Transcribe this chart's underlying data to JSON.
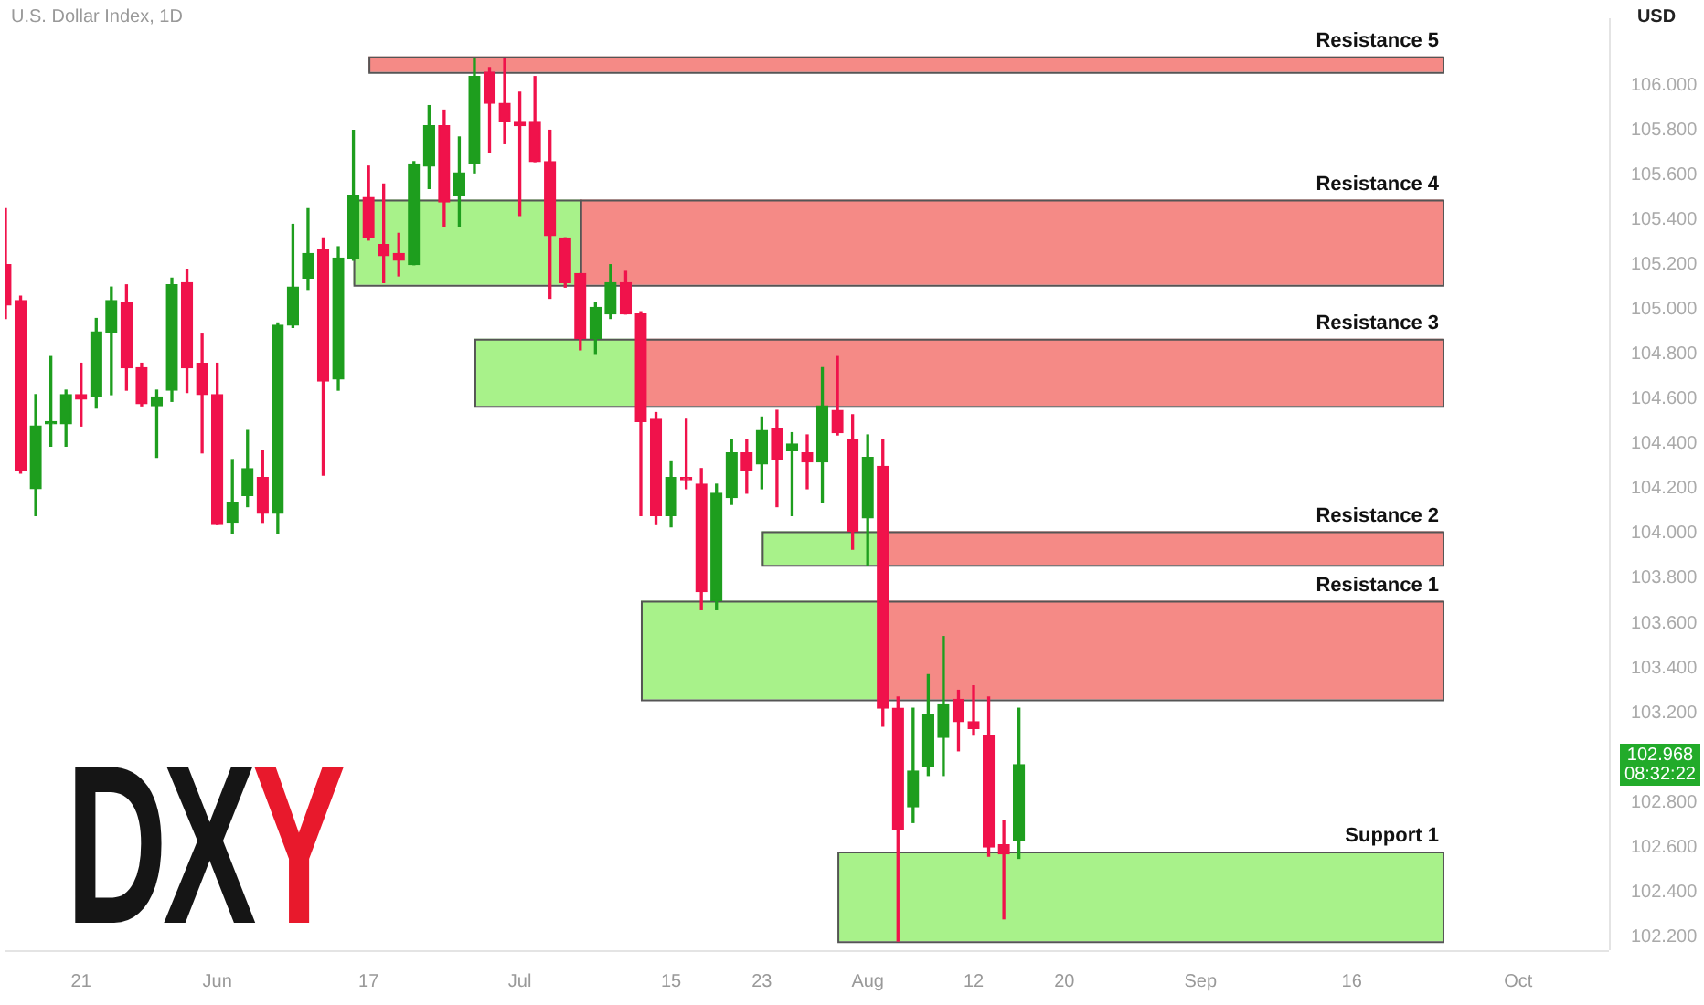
{
  "chart_data": {
    "type": "candlestick",
    "title": "U.S. Dollar Index, 1D",
    "ylabel": "USD",
    "categories": [
      null,
      null,
      null,
      null,
      null,
      "21",
      null,
      null,
      null,
      null,
      null,
      null,
      null,
      null,
      "Jun",
      null,
      null,
      null,
      null,
      null,
      null,
      null,
      null,
      null,
      "17",
      null,
      null,
      null,
      null,
      null,
      null,
      null,
      null,
      null,
      "Jul",
      null,
      null,
      null,
      null,
      null,
      null,
      null,
      null,
      null,
      "15",
      null,
      null,
      null,
      null,
      null,
      "23",
      null,
      null,
      null,
      null,
      null,
      null,
      "Aug",
      null,
      null,
      null,
      null,
      null,
      null,
      "12",
      null,
      null,
      null,
      null,
      null,
      "20",
      null,
      null,
      null,
      null,
      null,
      null,
      null,
      null,
      "Sep",
      null,
      null,
      null,
      null,
      null,
      null,
      null,
      null,
      null,
      "16",
      null,
      null,
      null,
      null,
      null,
      null,
      null,
      null,
      null,
      null,
      "Oct",
      null,
      null,
      null,
      null,
      null,
      null
    ],
    "ohlc": [
      [
        105.2,
        105.45,
        104.96,
        105.02
      ],
      [
        105.04,
        105.06,
        104.27,
        104.28
      ],
      [
        104.2,
        104.62,
        104.08,
        104.48
      ],
      [
        104.49,
        104.79,
        104.39,
        104.5
      ],
      [
        104.49,
        104.64,
        104.39,
        104.62
      ],
      [
        104.62,
        104.76,
        104.48,
        104.6
      ],
      [
        104.61,
        104.96,
        104.56,
        104.9
      ],
      [
        104.9,
        105.1,
        104.62,
        105.04
      ],
      [
        105.03,
        105.11,
        104.64,
        104.74
      ],
      [
        104.74,
        104.76,
        104.57,
        104.58
      ],
      [
        104.57,
        104.64,
        104.34,
        104.61
      ],
      [
        104.64,
        105.14,
        104.59,
        105.11
      ],
      [
        105.12,
        105.18,
        104.63,
        104.74
      ],
      [
        104.76,
        104.89,
        104.36,
        104.62
      ],
      [
        104.62,
        104.76,
        104.04,
        104.04
      ],
      [
        104.05,
        104.33,
        104,
        104.14
      ],
      [
        104.17,
        104.46,
        104.12,
        104.29
      ],
      [
        104.25,
        104.37,
        104.05,
        104.09
      ],
      [
        104.09,
        104.94,
        104,
        104.93
      ],
      [
        104.93,
        105.38,
        104.92,
        105.1
      ],
      [
        105.14,
        105.45,
        105.09,
        105.25
      ],
      [
        105.27,
        105.32,
        104.26,
        104.68
      ],
      [
        104.69,
        105.28,
        104.64,
        105.23
      ],
      [
        105.23,
        105.8,
        105.22,
        105.51
      ],
      [
        105.5,
        105.64,
        105.31,
        105.32
      ],
      [
        105.29,
        105.56,
        105.12,
        105.24
      ],
      [
        105.25,
        105.34,
        105.15,
        105.22
      ],
      [
        105.2,
        105.66,
        105.2,
        105.65
      ],
      [
        105.64,
        105.91,
        105.54,
        105.82
      ],
      [
        105.82,
        105.89,
        105.37,
        105.48
      ],
      [
        105.51,
        105.77,
        105.37,
        105.61
      ],
      [
        105.65,
        106.12,
        105.61,
        106.04
      ],
      [
        106.06,
        106.08,
        105.7,
        105.92
      ],
      [
        105.92,
        106.12,
        105.74,
        105.84
      ],
      [
        105.84,
        105.97,
        105.42,
        105.82
      ],
      [
        105.84,
        106.04,
        105.66,
        105.66
      ],
      [
        105.66,
        105.8,
        105.05,
        105.33
      ],
      [
        105.32,
        105.32,
        105.1,
        105.12
      ],
      [
        105.16,
        105.16,
        104.82,
        104.87
      ],
      [
        104.87,
        105.03,
        104.8,
        105.01
      ],
      [
        104.98,
        105.2,
        104.96,
        105.12
      ],
      [
        105.12,
        105.17,
        104.98,
        104.98
      ],
      [
        104.98,
        104.99,
        104.08,
        104.5
      ],
      [
        104.51,
        104.54,
        104.04,
        104.08
      ],
      [
        104.08,
        104.32,
        104.03,
        104.25
      ],
      [
        104.25,
        104.51,
        104.2,
        104.24
      ],
      [
        104.22,
        104.29,
        103.66,
        103.74
      ],
      [
        103.7,
        104.22,
        103.66,
        104.18
      ],
      [
        104.16,
        104.42,
        104.13,
        104.36
      ],
      [
        104.36,
        104.42,
        104.18,
        104.28
      ],
      [
        104.31,
        104.52,
        104.2,
        104.46
      ],
      [
        104.47,
        104.55,
        104.12,
        104.33
      ],
      [
        104.37,
        104.45,
        104.08,
        104.4
      ],
      [
        104.36,
        104.44,
        104.2,
        104.32
      ],
      [
        104.32,
        104.74,
        104.14,
        104.57
      ],
      [
        104.55,
        104.79,
        104.44,
        104.45
      ],
      [
        104.42,
        104.53,
        103.93,
        104.01
      ],
      [
        104.07,
        104.44,
        103.86,
        104.34
      ],
      [
        104.3,
        104.42,
        103.14,
        103.22
      ],
      [
        103.22,
        103.27,
        102.18,
        102.68
      ],
      [
        102.78,
        103.22,
        102.71,
        102.94
      ],
      [
        102.96,
        103.37,
        102.92,
        103.19
      ],
      [
        103.09,
        103.54,
        102.92,
        103.24
      ],
      [
        103.26,
        103.3,
        103.03,
        103.16
      ],
      [
        103.16,
        103.32,
        103.1,
        103.13
      ],
      [
        103.1,
        103.27,
        102.56,
        102.6
      ],
      [
        102.61,
        102.72,
        102.28,
        102.57
      ],
      [
        102.63,
        103.22,
        102.55,
        102.968
      ],
      null,
      null,
      null,
      null,
      null,
      null,
      null,
      null,
      null,
      null,
      null,
      null,
      null,
      null,
      null,
      null,
      null,
      null,
      null,
      null,
      null,
      null,
      null,
      null,
      null,
      null,
      null,
      null,
      null,
      null,
      null,
      null,
      null,
      null,
      null,
      null,
      null,
      null,
      null
    ],
    "colors": [
      "#f0124b",
      "#f0124b",
      "#1e9e1e",
      "#1e9e1e",
      "#1e9e1e",
      "#f0124b",
      "#1e9e1e",
      "#1e9e1e",
      "#f0124b",
      "#f0124b",
      "#1e9e1e",
      "#1e9e1e",
      "#f0124b",
      "#f0124b",
      "#f0124b",
      "#1e9e1e",
      "#1e9e1e",
      "#f0124b",
      "#1e9e1e",
      "#1e9e1e",
      "#1e9e1e",
      "#f0124b",
      "#1e9e1e",
      "#1e9e1e",
      "#f0124b",
      "#f0124b",
      "#f0124b",
      "#1e9e1e",
      "#1e9e1e",
      "#f0124b",
      "#1e9e1e",
      "#1e9e1e",
      "#f0124b",
      "#f0124b",
      "#f0124b",
      "#f0124b",
      "#f0124b",
      "#f0124b",
      "#f0124b",
      "#1e9e1e",
      "#1e9e1e",
      "#f0124b",
      "#f0124b",
      "#f0124b",
      "#1e9e1e",
      "#f0124b",
      "#f0124b",
      "#1e9e1e",
      "#1e9e1e",
      "#f0124b",
      "#1e9e1e",
      "#f0124b",
      "#1e9e1e",
      "#f0124b",
      "#1e9e1e",
      "#f0124b",
      "#f0124b",
      "#1e9e1e",
      "#f0124b",
      "#f0124b",
      "#1e9e1e",
      "#1e9e1e",
      "#1e9e1e",
      "#f0124b",
      "#f0124b",
      "#f0124b",
      "#f0124b",
      "#1e9e1e",
      null,
      null,
      null,
      null,
      null,
      null,
      null,
      null,
      null,
      null,
      null,
      null,
      null,
      null,
      null,
      null,
      null,
      null,
      null,
      null,
      null,
      null,
      null,
      null,
      null,
      null,
      null,
      null,
      null,
      null,
      null,
      null,
      null,
      null,
      null,
      null,
      null,
      null,
      null
    ],
    "ylim": [
      102.14,
      106.3
    ],
    "yticks": [
      {
        "value": 102.2,
        "label": "102.200"
      },
      {
        "value": 102.4,
        "label": "102.400"
      },
      {
        "value": 102.6,
        "label": "102.600"
      },
      {
        "value": 102.8,
        "label": "102.800"
      },
      {
        "value": 103.2,
        "label": "103.200"
      },
      {
        "value": 103.4,
        "label": "103.400"
      },
      {
        "value": 103.6,
        "label": "103.600"
      },
      {
        "value": 103.8,
        "label": "103.800"
      },
      {
        "value": 104,
        "label": "104.000"
      },
      {
        "value": 104.2,
        "label": "104.200"
      },
      {
        "value": 104.4,
        "label": "104.400"
      },
      {
        "value": 104.6,
        "label": "104.600"
      },
      {
        "value": 104.8,
        "label": "104.800"
      },
      {
        "value": 105,
        "label": "105.000"
      },
      {
        "value": 105.2,
        "label": "105.200"
      },
      {
        "value": 105.4,
        "label": "105.400"
      },
      {
        "value": 105.6,
        "label": "105.600"
      },
      {
        "value": 105.8,
        "label": "105.800"
      },
      {
        "value": 106,
        "label": "106.000"
      }
    ],
    "bands": [
      {
        "axis": "y",
        "from": 106.06,
        "to": 106.13,
        "label": "Resistance 5",
        "color": "#f58a86"
      },
      {
        "axis": "y",
        "from": 105.11,
        "to": 105.49,
        "color": "#a8f28a"
      },
      {
        "axis": "y",
        "from": 105.11,
        "to": 105.49,
        "label": "Resistance 4",
        "color": "#f58a86"
      },
      {
        "axis": "y",
        "from": 104.57,
        "to": 104.87,
        "color": "#a8f28a"
      },
      {
        "axis": "y",
        "from": 104.57,
        "to": 104.87,
        "label": "Resistance 3",
        "color": "#f58a86"
      },
      {
        "axis": "y",
        "from": 103.86,
        "to": 104.01,
        "color": "#a8f28a"
      },
      {
        "axis": "y",
        "from": 103.86,
        "to": 104.01,
        "label": "Resistance 2",
        "color": "#f58a86"
      },
      {
        "axis": "y",
        "from": 103.26,
        "to": 103.7,
        "color": "#a8f28a"
      },
      {
        "axis": "y",
        "from": 103.26,
        "to": 103.7,
        "label": "Resistance 1",
        "color": "#f58a86"
      },
      {
        "axis": "y",
        "from": 102.18,
        "to": 102.58,
        "label": "Support 1",
        "color": "#a8f28a"
      }
    ],
    "annotations": [
      "DXY",
      "102.968",
      "08:32:22"
    ]
  }
}
